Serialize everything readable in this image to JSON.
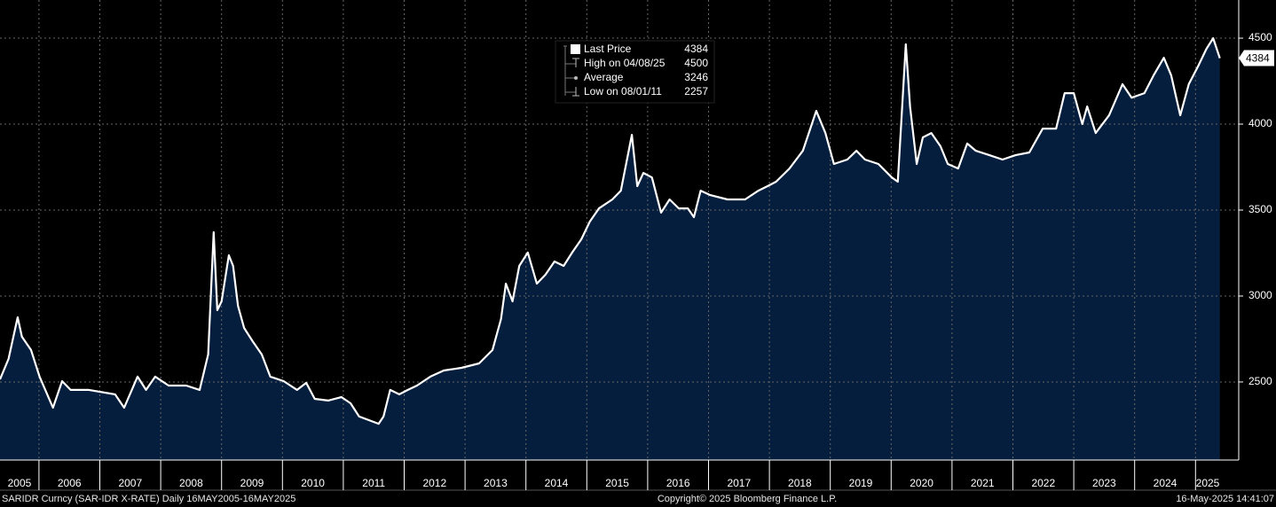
{
  "chart_data": {
    "type": "area",
    "footer_left": "SARIDR Curncy (SAR-IDR X-RATE)  Daily 16MAY2005-16MAY2025",
    "footer_center": "Copyright© 2025 Bloomberg Finance L.P.",
    "footer_right": "16-May-2025 14:41:07",
    "x": [
      2005.36,
      2005.5,
      2005.65,
      2005.72,
      2005.87,
      2006.01,
      2006.23,
      2006.38,
      2006.52,
      2006.82,
      2007.25,
      2007.4,
      2007.62,
      2007.76,
      2007.91,
      2008.13,
      2008.42,
      2008.64,
      2008.78,
      2008.87,
      2008.93,
      2009.0,
      2009.12,
      2009.19,
      2009.27,
      2009.37,
      2009.51,
      2009.66,
      2009.8,
      2010.02,
      2010.24,
      2010.39,
      2010.53,
      2010.75,
      2010.97,
      2011.12,
      2011.26,
      2011.58,
      2011.66,
      2011.77,
      2011.92,
      2012.06,
      2012.21,
      2012.43,
      2012.65,
      2012.94,
      2013.23,
      2013.45,
      2013.59,
      2013.67,
      2013.78,
      2013.89,
      2014.03,
      2014.18,
      2014.32,
      2014.47,
      2014.62,
      2014.76,
      2014.91,
      2015.05,
      2015.2,
      2015.42,
      2015.56,
      2015.74,
      2015.83,
      2015.93,
      2016.07,
      2016.22,
      2016.36,
      2016.51,
      2016.66,
      2016.76,
      2016.87,
      2017.02,
      2017.31,
      2017.6,
      2017.82,
      2017.97,
      2018.11,
      2018.33,
      2018.55,
      2018.77,
      2018.92,
      2019.06,
      2019.28,
      2019.43,
      2019.57,
      2019.79,
      2020.01,
      2020.11,
      2020.24,
      2020.31,
      2020.42,
      2020.52,
      2020.66,
      2020.81,
      2020.93,
      2021.1,
      2021.25,
      2021.39,
      2021.61,
      2021.83,
      2022.05,
      2022.27,
      2022.49,
      2022.71,
      2022.85,
      2023.0,
      2023.14,
      2023.22,
      2023.36,
      2023.58,
      2023.8,
      2023.95,
      2024.16,
      2024.31,
      2024.48,
      2024.6,
      2024.75,
      2024.89,
      2025.04,
      2025.18,
      2025.29,
      2025.4
    ],
    "series": [
      {
        "name": "Last Price",
        "color": "#ffffff",
        "fill": "#061e3d",
        "values": [
          2515,
          2634,
          2876,
          2763,
          2686,
          2531,
          2350,
          2505,
          2454,
          2454,
          2428,
          2350,
          2531,
          2454,
          2531,
          2479,
          2479,
          2454,
          2660,
          3371,
          2918,
          2969,
          3237,
          3175,
          2943,
          2814,
          2737,
          2660,
          2531,
          2505,
          2454,
          2495,
          2402,
          2392,
          2412,
          2376,
          2299,
          2257,
          2299,
          2454,
          2428,
          2454,
          2479,
          2531,
          2567,
          2582,
          2608,
          2686,
          2866,
          3072,
          2969,
          3175,
          3253,
          3072,
          3124,
          3201,
          3175,
          3253,
          3330,
          3433,
          3510,
          3562,
          3613,
          3938,
          3639,
          3716,
          3690,
          3485,
          3562,
          3510,
          3510,
          3459,
          3613,
          3588,
          3562,
          3562,
          3613,
          3639,
          3665,
          3742,
          3845,
          4077,
          3948,
          3768,
          3794,
          3845,
          3794,
          3768,
          3690,
          3665,
          4464,
          4103,
          3768,
          3923,
          3948,
          3871,
          3768,
          3742,
          3887,
          3845,
          3820,
          3794,
          3820,
          3835,
          3974,
          3974,
          4180,
          4180,
          4000,
          4103,
          3948,
          4051,
          4232,
          4154,
          4180,
          4283,
          4386,
          4283,
          4051,
          4232,
          4335,
          4438,
          4500,
          4384
        ]
      }
    ],
    "legend_stats": [
      {
        "label": "High on 04/08/25",
        "value": 4500
      },
      {
        "label": "Average",
        "value": 3246
      },
      {
        "label": "Low on 08/01/11",
        "value": 2257
      }
    ],
    "xlim": [
      2005.36,
      2025.71
    ],
    "xticks": [
      2006,
      2007,
      2008,
      2009,
      2010,
      2011,
      2012,
      2013,
      2014,
      2015,
      2016,
      2017,
      2018,
      2019,
      2020,
      2021,
      2022,
      2023,
      2024,
      2025
    ],
    "year_labels": [
      2005,
      2006,
      2007,
      2008,
      2009,
      2010,
      2011,
      2012,
      2013,
      2014,
      2015,
      2016,
      2017,
      2018,
      2019,
      2020,
      2021,
      2022,
      2023,
      2024,
      2025
    ],
    "ylim": [
      2046,
      4722
    ],
    "yticks": [
      2500,
      3000,
      3500,
      4000,
      4500
    ],
    "grid": true
  }
}
